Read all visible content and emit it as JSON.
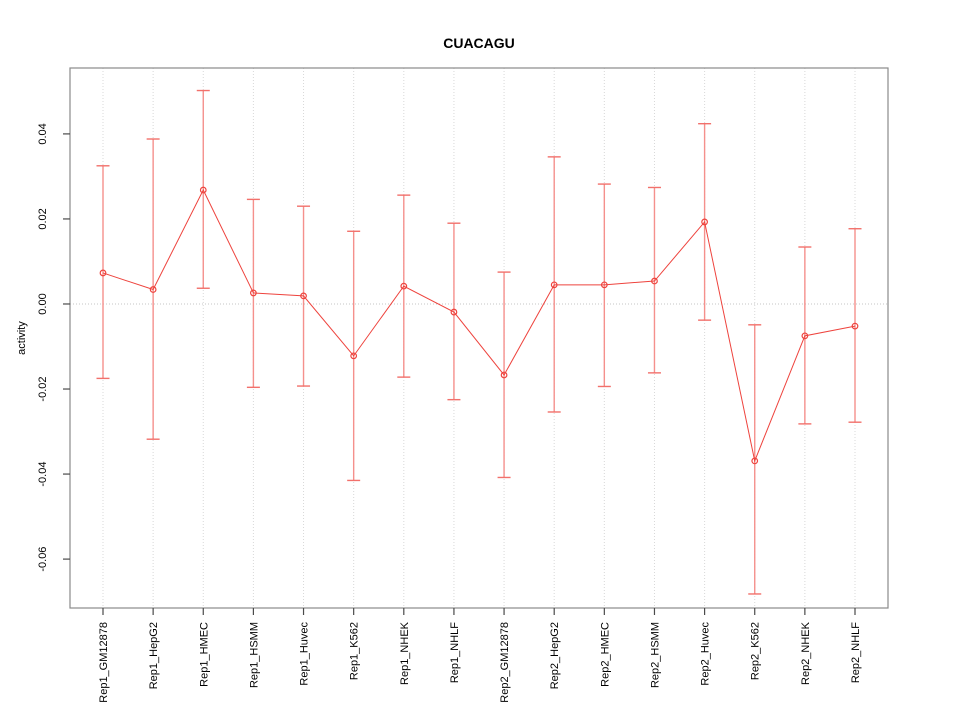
{
  "chart_data": {
    "type": "line",
    "title": "CUACAGU",
    "xlabel": "",
    "ylabel": "activity",
    "legend": "none",
    "grid": "vertical dotted gridline at each category; horizontal dotted line at y=0",
    "categories": [
      "Rep1_GM12878",
      "Rep1_HepG2",
      "Rep1_HMEC",
      "Rep1_HSMM",
      "Rep1_Huvec",
      "Rep1_K562",
      "Rep1_NHEK",
      "Rep1_NHLF",
      "Rep2_GM12878",
      "Rep2_HepG2",
      "Rep2_HMEC",
      "Rep2_HSMM",
      "Rep2_Huvec",
      "Rep2_K562",
      "Rep2_NHEK",
      "Rep2_NHLF"
    ],
    "series": [
      {
        "name": "activity",
        "values": [
          0.0073,
          0.0034,
          0.0268,
          0.0026,
          0.0019,
          -0.0122,
          0.0042,
          -0.0019,
          -0.0167,
          0.0045,
          0.0045,
          0.0054,
          0.0193,
          -0.0369,
          -0.0075,
          -0.0052
        ],
        "error_high": [
          0.0325,
          0.0388,
          0.0502,
          0.0246,
          0.023,
          0.0171,
          0.0256,
          0.019,
          0.0075,
          0.0346,
          0.0282,
          0.0274,
          0.0424,
          -0.0049,
          0.0134,
          0.0177
        ],
        "error_low": [
          -0.0175,
          -0.0318,
          0.0037,
          -0.0196,
          -0.0193,
          -0.0415,
          -0.0172,
          -0.0225,
          -0.0408,
          -0.0254,
          -0.0194,
          -0.0162,
          -0.0038,
          -0.0682,
          -0.0282,
          -0.0278
        ]
      }
    ],
    "yticks": [
      {
        "v": 0.04,
        "label": "0.04"
      },
      {
        "v": 0.02,
        "label": "0.02"
      },
      {
        "v": 0.0,
        "label": "0.00"
      },
      {
        "v": -0.02,
        "label": "-0.02"
      },
      {
        "v": -0.04,
        "label": "-0.04"
      },
      {
        "v": -0.06,
        "label": "-0.06"
      }
    ],
    "ylim": [
      -0.0715,
      0.0555
    ],
    "colors": {
      "line": "#ee433d",
      "point": "#ee433d",
      "error_bar": "#f5908c",
      "error_cap": "#f2706b",
      "grid": "#d8d8d8",
      "zero_line": "#c4c4c4",
      "box": "#8a8a8a",
      "tick": "#4a4a4a",
      "text": "#000000"
    }
  }
}
